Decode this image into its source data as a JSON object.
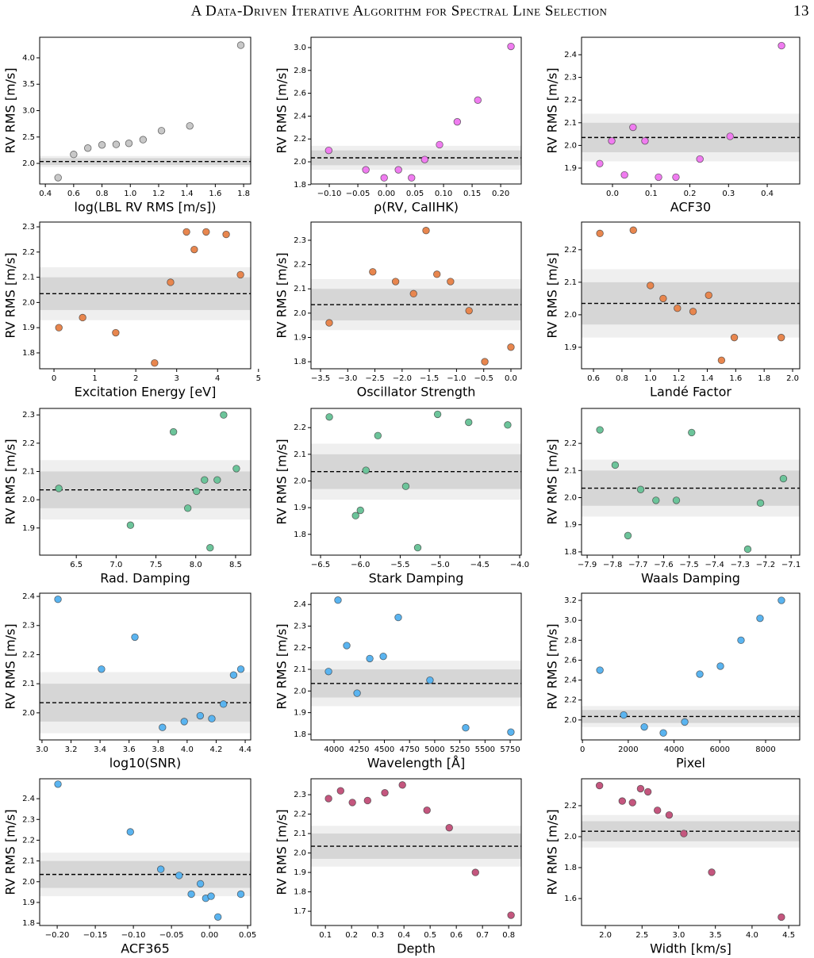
{
  "header": {
    "title": "A Data-Driven Iterative Algorithm for Spectral Line Selection",
    "page": "13"
  },
  "chart_data": [
    {
      "type": "scatter",
      "xlabel": "log(LBL RV RMS [m/s])",
      "ylabel": "RV RMS [m/s]",
      "color": "#c8c8c8",
      "hline": 2.035,
      "band_inner": [
        1.97,
        2.1
      ],
      "band_outer": [
        1.93,
        2.14
      ],
      "x": [
        0.49,
        0.6,
        0.7,
        0.8,
        0.9,
        0.99,
        1.09,
        1.22,
        1.42,
        1.78
      ],
      "values": [
        1.73,
        2.17,
        2.29,
        2.35,
        2.36,
        2.38,
        2.45,
        2.62,
        2.71,
        4.24
      ],
      "xlim": [
        0.36,
        1.85
      ],
      "ylim": [
        1.61,
        4.39
      ],
      "xticks": [
        0.4,
        0.6,
        0.8,
        {
          "value": 1,
          "label": "1.0"
        },
        1.2,
        1.4,
        1.6,
        1.8
      ],
      "yticks": [
        {
          "value": 2,
          "label": "2.0"
        },
        2.5,
        {
          "value": 3,
          "label": "3.0"
        },
        3.5,
        {
          "value": 4,
          "label": "4.0"
        }
      ]
    },
    {
      "type": "scatter",
      "xlabel": "ρ(RV, CaIIHK)",
      "ylabel": "RV RMS [m/s]",
      "color": "#f07cf0",
      "hline": 2.035,
      "band_inner": [
        1.97,
        2.1
      ],
      "band_outer": [
        1.93,
        2.14
      ],
      "x": [
        -0.101,
        -0.036,
        -0.004,
        0.021,
        0.044,
        0.067,
        0.093,
        0.124,
        0.16,
        0.218
      ],
      "values": [
        2.1,
        1.93,
        1.86,
        1.93,
        1.86,
        2.02,
        2.15,
        2.35,
        2.54,
        3.01
      ],
      "xlim": [
        -0.132,
        0.236
      ],
      "ylim": [
        1.806,
        3.09
      ],
      "xticks": [
        {
          "value": -0.1,
          "label": "−0.10"
        },
        {
          "value": -0.05,
          "label": "−0.05"
        },
        {
          "value": 0,
          "label": "0.00"
        },
        0.05,
        {
          "value": 0.1,
          "label": "0.10"
        },
        0.15,
        {
          "value": 0.2,
          "label": "0.20"
        }
      ],
      "yticks": [
        1.8,
        {
          "value": 2,
          "label": "2.0"
        },
        2.2,
        2.4,
        2.6,
        2.8,
        {
          "value": 3,
          "label": "3.0"
        }
      ]
    },
    {
      "type": "scatter",
      "xlabel": "ACF30",
      "ylabel": "RV RMS [m/s]",
      "color": "#f07cf0",
      "hline": 2.035,
      "band_inner": [
        1.97,
        2.1
      ],
      "band_outer": [
        1.93,
        2.14
      ],
      "x": [
        -0.033,
        -0.002,
        0.031,
        0.053,
        0.084,
        0.119,
        0.164,
        0.226,
        0.304,
        0.437
      ],
      "values": [
        1.92,
        2.02,
        1.87,
        2.08,
        2.02,
        1.86,
        1.86,
        1.94,
        2.04,
        2.44
      ],
      "xlim": [
        -0.08,
        0.484
      ],
      "ylim": [
        1.83,
        2.477
      ],
      "xticks": [
        {
          "value": 0,
          "label": "0.0"
        },
        0.1,
        0.2,
        0.3,
        0.4
      ],
      "yticks": [
        1.9,
        {
          "value": 2,
          "label": "2.0"
        },
        2.1,
        2.2,
        2.3,
        2.4
      ]
    },
    {
      "type": "scatter",
      "xlabel": "Excitation Energy [eV]",
      "ylabel": "RV RMS [m/s]",
      "color": "#e8864e",
      "hline": 2.035,
      "band_inner": [
        1.97,
        2.1
      ],
      "band_outer": [
        1.93,
        2.14
      ],
      "x": [
        0.12,
        0.7,
        1.51,
        2.46,
        2.85,
        3.24,
        3.43,
        3.72,
        4.21,
        4.56
      ],
      "values": [
        1.9,
        1.94,
        1.88,
        1.76,
        2.08,
        2.28,
        2.21,
        2.28,
        2.27,
        2.11
      ],
      "xlim": [
        -0.35,
        4.81
      ],
      "ylim": [
        1.737,
        2.319
      ],
      "xticks": [
        0,
        1,
        2,
        3,
        4,
        5
      ],
      "yticks": [
        1.8,
        1.9,
        {
          "value": 2,
          "label": "2.0"
        },
        2.1,
        2.2,
        2.3
      ]
    },
    {
      "type": "scatter",
      "xlabel": "Oscillator Strength",
      "ylabel": "RV RMS [m/s]",
      "color": "#e8864e",
      "hline": 2.035,
      "band_inner": [
        1.97,
        2.1
      ],
      "band_outer": [
        1.93,
        2.14
      ],
      "x": [
        -3.34,
        -2.54,
        -2.12,
        -1.79,
        -1.56,
        -1.36,
        -1.11,
        -0.77,
        -0.48,
        0
      ],
      "values": [
        1.96,
        2.17,
        2.13,
        2.08,
        2.34,
        2.16,
        2.13,
        2.01,
        1.8,
        1.86
      ],
      "xlim": [
        -3.675,
        0.19
      ],
      "ylim": [
        1.771,
        2.375
      ],
      "xticks": [
        {
          "value": -3.5,
          "label": "−3.5"
        },
        {
          "value": -3,
          "label": "−3.0"
        },
        {
          "value": -2.5,
          "label": "−2.5"
        },
        {
          "value": -2,
          "label": "−2.0"
        },
        {
          "value": -1.5,
          "label": "−1.5"
        },
        {
          "value": -1,
          "label": "−1.0"
        },
        {
          "value": -0.5,
          "label": "−0.5"
        },
        {
          "value": 0,
          "label": "0.0"
        }
      ],
      "yticks": [
        1.8,
        1.9,
        {
          "value": 2,
          "label": "2.0"
        },
        2.1,
        2.2,
        2.3
      ]
    },
    {
      "type": "scatter",
      "xlabel": "Landé Factor",
      "ylabel": "RV RMS [m/s]",
      "color": "#e8864e",
      "hline": 2.035,
      "band_inner": [
        1.97,
        2.1
      ],
      "band_outer": [
        1.93,
        2.14
      ],
      "x": [
        0.645,
        0.88,
        1,
        1.09,
        1.19,
        1.3,
        1.41,
        1.5,
        1.59,
        1.92
      ],
      "values": [
        2.25,
        2.26,
        2.09,
        2.05,
        2.02,
        2.01,
        2.06,
        1.86,
        1.93,
        1.93
      ],
      "xlim": [
        0.516,
        2.05
      ],
      "ylim": [
        1.834,
        2.285
      ],
      "xticks": [
        0.6,
        0.8,
        {
          "value": 1,
          "label": "1.0"
        },
        1.2,
        1.4,
        1.6,
        1.8,
        {
          "value": 2,
          "label": "2.0"
        }
      ],
      "yticks": [
        1.9,
        {
          "value": 2,
          "label": "2.0"
        },
        2.1,
        2.2
      ]
    },
    {
      "type": "scatter",
      "xlabel": "Rad. Damping",
      "ylabel": "RV RMS [m/s]",
      "color": "#6cc49a",
      "hline": 2.035,
      "band_inner": [
        1.97,
        2.1
      ],
      "band_outer": [
        1.93,
        2.14
      ],
      "x": [
        6.28,
        7.18,
        7.72,
        7.9,
        8.01,
        8.11,
        8.18,
        8.27,
        8.35,
        8.51
      ],
      "values": [
        2.04,
        1.91,
        2.24,
        1.97,
        2.03,
        2.07,
        1.83,
        2.07,
        2.3,
        2.11
      ],
      "xlim": [
        6.04,
        8.69
      ],
      "ylim": [
        1.804,
        2.323
      ],
      "xticks": [
        6.5,
        {
          "value": 7,
          "label": "7.0"
        },
        7.5,
        {
          "value": 8,
          "label": "8.0"
        },
        8.5
      ],
      "yticks": [
        1.9,
        {
          "value": 2,
          "label": "2.0"
        },
        2.1,
        2.2,
        2.3
      ]
    },
    {
      "type": "scatter",
      "xlabel": "Stark Damping",
      "ylabel": "RV RMS [m/s]",
      "color": "#6cc49a",
      "hline": 2.035,
      "band_inner": [
        1.97,
        2.1
      ],
      "band_outer": [
        1.93,
        2.14
      ],
      "x": [
        -6.39,
        -6.06,
        -6,
        -5.93,
        -5.78,
        -5.43,
        -5.28,
        -5.03,
        -4.64,
        -4.15
      ],
      "values": [
        2.24,
        1.87,
        1.89,
        2.04,
        2.17,
        1.98,
        1.75,
        2.25,
        2.22,
        2.21
      ],
      "xlim": [
        -6.62,
        -3.98
      ],
      "ylim": [
        1.722,
        2.272
      ],
      "xticks": [
        {
          "value": -6.5,
          "label": "−6.5"
        },
        {
          "value": -6,
          "label": "−6.0"
        },
        {
          "value": -5.5,
          "label": "−5.5"
        },
        {
          "value": -5,
          "label": "−5.0"
        },
        {
          "value": -4.5,
          "label": "−4.5"
        },
        {
          "value": -4,
          "label": "−4.0"
        }
      ],
      "yticks": [
        1.8,
        1.9,
        {
          "value": 2,
          "label": "2.0"
        },
        2.1,
        2.2
      ]
    },
    {
      "type": "scatter",
      "xlabel": "Waals Damping",
      "ylabel": "RV RMS [m/s]",
      "color": "#6cc49a",
      "hline": 2.035,
      "band_inner": [
        1.97,
        2.1
      ],
      "band_outer": [
        1.93,
        2.14
      ],
      "x": [
        -7.85,
        -7.79,
        -7.74,
        -7.69,
        -7.63,
        -7.55,
        -7.49,
        -7.27,
        -7.22,
        -7.13
      ],
      "values": [
        2.25,
        2.12,
        1.86,
        2.03,
        1.99,
        1.99,
        2.24,
        1.81,
        1.98,
        2.07
      ],
      "xlim": [
        -7.922,
        -7.066
      ],
      "ylim": [
        1.788,
        2.329
      ],
      "xticks": [
        {
          "value": -7.9,
          "label": "−7.9"
        },
        {
          "value": -7.8,
          "label": "−7.8"
        },
        {
          "value": -7.7,
          "label": "−7.7"
        },
        {
          "value": -7.6,
          "label": "−7.6"
        },
        {
          "value": -7.5,
          "label": "−7.5"
        },
        {
          "value": -7.4,
          "label": "−7.4"
        },
        {
          "value": -7.3,
          "label": "−7.3"
        },
        {
          "value": -7.2,
          "label": "−7.2"
        },
        {
          "value": -7.1,
          "label": "−7.1"
        }
      ],
      "yticks": [
        1.8,
        1.9,
        {
          "value": 2,
          "label": "2.0"
        },
        2.1,
        2.2
      ]
    },
    {
      "type": "scatter",
      "xlabel": "log10(SNR)",
      "ylabel": "RV RMS [m/s]",
      "color": "#5ab4f0",
      "hline": 2.035,
      "band_inner": [
        1.97,
        2.1
      ],
      "band_outer": [
        1.93,
        2.14
      ],
      "x": [
        3.11,
        3.41,
        3.64,
        3.83,
        3.98,
        4.09,
        4.17,
        4.25,
        4.32,
        4.37
      ],
      "values": [
        2.39,
        2.15,
        2.26,
        1.95,
        1.97,
        1.99,
        1.98,
        2.03,
        2.13,
        2.15
      ],
      "xlim": [
        2.984,
        4.438
      ],
      "ylim": [
        1.907,
        2.411
      ],
      "xticks": [
        {
          "value": 3,
          "label": "3.0"
        },
        3.2,
        3.4,
        3.6,
        3.8,
        {
          "value": 4,
          "label": "4.0"
        },
        4.2,
        4.4
      ],
      "yticks": [
        {
          "value": 2,
          "label": "2.0"
        },
        2.1,
        2.2,
        2.3,
        2.4
      ]
    },
    {
      "type": "scatter",
      "xlabel": "Wavelength [Å]",
      "ylabel": "RV RMS [m/s]",
      "color": "#5ab4f0",
      "hline": 2.035,
      "band_inner": [
        1.97,
        2.1
      ],
      "band_outer": [
        1.93,
        2.14
      ],
      "x": [
        3945,
        4039,
        4126,
        4229,
        4355,
        4489,
        4638,
        4953,
        5308,
        5757
      ],
      "values": [
        2.09,
        2.42,
        2.21,
        1.99,
        2.15,
        2.16,
        2.34,
        2.05,
        1.83,
        1.81
      ],
      "xlim": [
        3771,
        5860
      ],
      "ylim": [
        1.774,
        2.452
      ],
      "xticks": [
        4000,
        4250,
        4500,
        4750,
        5000,
        5250,
        5500,
        5750
      ],
      "yticks": [
        1.8,
        1.9,
        {
          "value": 2,
          "label": "2.0"
        },
        2.1,
        2.2,
        2.3,
        2.4
      ]
    },
    {
      "type": "scatter",
      "xlabel": "Pixel",
      "ylabel": "RV RMS [m/s]",
      "color": "#5ab4f0",
      "hline": 2.035,
      "band_inner": [
        1.97,
        2.1
      ],
      "band_outer": [
        1.93,
        2.14
      ],
      "x": [
        762,
        1801,
        2701,
        3532,
        4467,
        5125,
        6025,
        6925,
        7756,
        8691
      ],
      "values": [
        2.5,
        2.05,
        1.93,
        1.87,
        1.98,
        2.46,
        2.54,
        2.8,
        3.02,
        3.2
      ],
      "xlim": [
        -40,
        9490
      ],
      "ylim": [
        1.8,
        3.272
      ],
      "xticks": [
        0,
        2000,
        4000,
        6000,
        8000
      ],
      "yticks": [
        {
          "value": 2,
          "label": "2.0"
        },
        2.2,
        2.4,
        2.6,
        2.8,
        {
          "value": 3,
          "label": "3.0"
        },
        3.2
      ]
    },
    {
      "type": "scatter",
      "xlabel": "ACF365",
      "ylabel": "RV RMS [m/s]",
      "color": "#5ab4f0",
      "hline": 2.035,
      "band_inner": [
        1.97,
        2.1
      ],
      "band_outer": [
        1.93,
        2.14
      ],
      "x": [
        -0.199,
        -0.104,
        -0.064,
        -0.04,
        -0.024,
        -0.012,
        -0.005,
        0.002,
        0.011,
        0.041
      ],
      "values": [
        2.47,
        2.24,
        2.06,
        2.03,
        1.94,
        1.99,
        1.92,
        1.93,
        1.83,
        1.94
      ],
      "xlim": [
        -0.223,
        0.054
      ],
      "ylim": [
        1.789,
        2.496
      ],
      "xticks": [
        {
          "value": -0.2,
          "label": "−0.20"
        },
        {
          "value": -0.15,
          "label": "−0.15"
        },
        {
          "value": -0.1,
          "label": "−0.10"
        },
        {
          "value": -0.05,
          "label": "−0.05"
        },
        {
          "value": 0,
          "label": "0.00"
        },
        0.05
      ],
      "yticks": [
        1.8,
        1.9,
        {
          "value": 2,
          "label": "2.0"
        },
        2.1,
        2.2,
        2.3,
        2.4
      ]
    },
    {
      "type": "scatter",
      "xlabel": "Depth",
      "ylabel": "RV RMS [m/s]",
      "color": "#c4567e",
      "hline": 2.035,
      "band_inner": [
        1.97,
        2.1
      ],
      "band_outer": [
        1.93,
        2.14
      ],
      "x": [
        0.112,
        0.158,
        0.203,
        0.261,
        0.327,
        0.394,
        0.488,
        0.573,
        0.673,
        0.809
      ],
      "values": [
        2.28,
        2.32,
        2.26,
        2.27,
        2.31,
        2.35,
        2.22,
        2.13,
        1.9,
        1.68
      ],
      "xlim": [
        0.045,
        0.848
      ],
      "ylim": [
        1.627,
        2.382
      ],
      "xticks": [
        0.1,
        0.2,
        0.3,
        0.4,
        0.5,
        0.6,
        0.7,
        0.8
      ],
      "yticks": [
        1.7,
        1.8,
        1.9,
        {
          "value": 2,
          "label": "2.0"
        },
        2.1,
        2.2,
        2.3
      ]
    },
    {
      "type": "scatter",
      "xlabel": "Width [km/s]",
      "ylabel": "RV RMS [m/s]",
      "color": "#c4567e",
      "hline": 2.035,
      "band_inner": [
        1.97,
        2.1
      ],
      "band_outer": [
        1.93,
        2.14
      ],
      "x": [
        1.92,
        2.23,
        2.37,
        2.48,
        2.58,
        2.71,
        2.87,
        3.07,
        3.45,
        4.4
      ],
      "values": [
        2.33,
        2.23,
        2.22,
        2.31,
        2.29,
        2.17,
        2.14,
        2.02,
        1.77,
        1.48
      ],
      "xlim": [
        1.675,
        4.65
      ],
      "ylim": [
        1.426,
        2.374
      ],
      "xticks": [
        {
          "value": 2,
          "label": "2.0"
        },
        2.5,
        {
          "value": 3,
          "label": "3.0"
        },
        3.5,
        {
          "value": 4,
          "label": "4.0"
        },
        4.5
      ],
      "yticks": [
        1.6,
        1.8,
        {
          "value": 2,
          "label": "2.0"
        },
        2.2
      ]
    }
  ]
}
